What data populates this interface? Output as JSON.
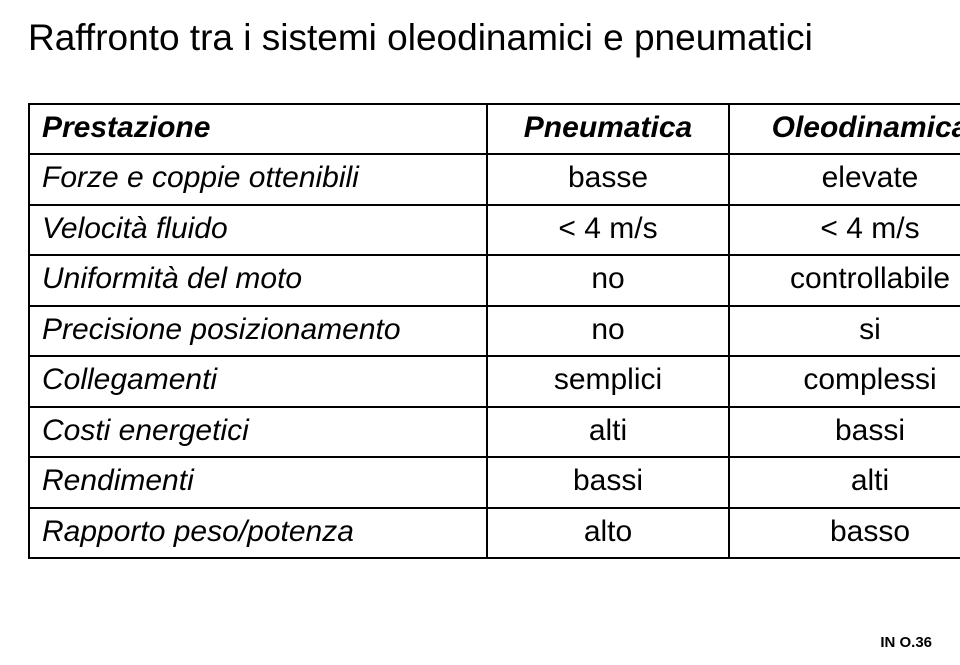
{
  "title": "Raffronto tra i sistemi oleodinamici e pneumatici",
  "table": {
    "header": {
      "c0": "Prestazione",
      "c1": "Pneumatica",
      "c2": "Oleodinamica"
    },
    "rows": [
      {
        "label": "Forze e coppie ottenibili",
        "c1": "basse",
        "c2": "elevate"
      },
      {
        "label": "Velocità fluido",
        "c1": "< 4 m/s",
        "c2": "< 4 m/s"
      },
      {
        "label": "Uniformità del moto",
        "c1": "no",
        "c2": "controllabile"
      },
      {
        "label": "Precisione posizionamento",
        "c1": "no",
        "c2": "si"
      },
      {
        "label": "Collegamenti",
        "c1": "semplici",
        "c2": "complessi"
      },
      {
        "label": "Costi energetici",
        "c1": "alti",
        "c2": "bassi"
      },
      {
        "label": "Rendimenti",
        "c1": "bassi",
        "c2": "alti"
      },
      {
        "label": "Rapporto peso/potenza",
        "c1": "alto",
        "c2": "basso"
      }
    ]
  },
  "footer": "IN O.36",
  "colors": {
    "background": "#ffffff",
    "text": "#000000",
    "border": "#000000"
  },
  "fontsizes": {
    "title": 37,
    "cell": 30,
    "footer": 15
  }
}
